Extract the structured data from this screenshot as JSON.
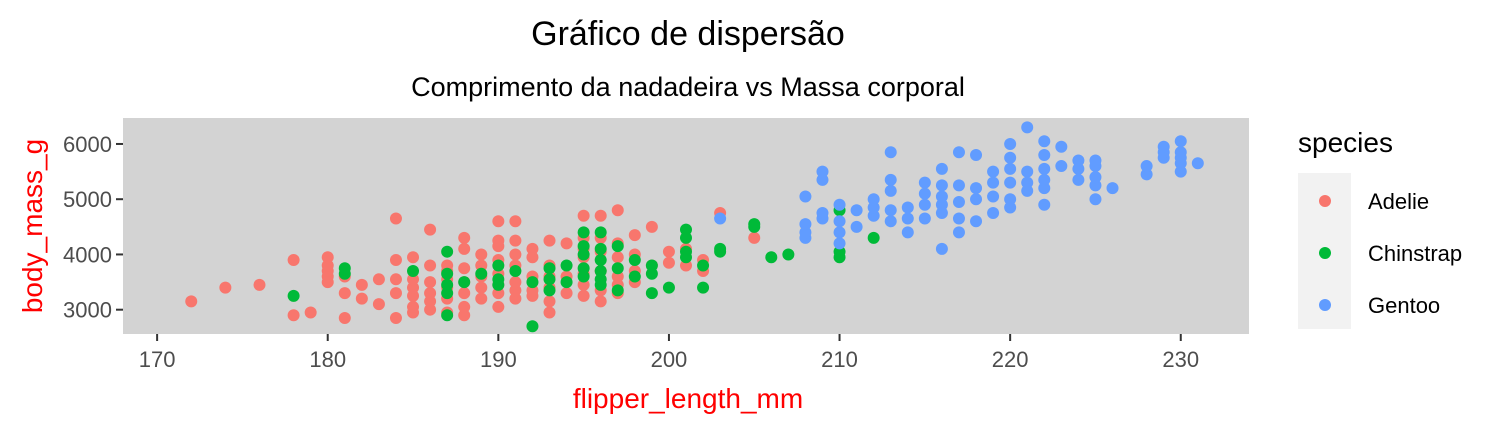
{
  "chart_data": {
    "type": "scatter",
    "title": "Gráfico de dispersão",
    "subtitle": "Comprimento da nadadeira vs Massa corporal",
    "xlabel": "flipper_length_mm",
    "ylabel": "body_mass_g",
    "xlim": [
      168,
      234
    ],
    "ylim": [
      2560,
      6470
    ],
    "xticks": [
      170,
      180,
      190,
      200,
      210,
      220,
      230
    ],
    "yticks": [
      3000,
      4000,
      5000,
      6000
    ],
    "grid": false,
    "panel_background": "#d3d3d3",
    "axis_title_color": "#ff0000",
    "legend": {
      "title": "species",
      "position": "right"
    },
    "series": [
      {
        "name": "Adelie",
        "color": "#f8766d",
        "points": [
          [
            172,
            3150
          ],
          [
            174,
            3400
          ],
          [
            176,
            3450
          ],
          [
            178,
            2900
          ],
          [
            178,
            3900
          ],
          [
            179,
            2950
          ],
          [
            180,
            3500
          ],
          [
            180,
            3600
          ],
          [
            180,
            3700
          ],
          [
            180,
            3800
          ],
          [
            180,
            3950
          ],
          [
            181,
            2850
          ],
          [
            181,
            3300
          ],
          [
            181,
            3600
          ],
          [
            182,
            3200
          ],
          [
            182,
            3450
          ],
          [
            183,
            3100
          ],
          [
            183,
            3550
          ],
          [
            184,
            2850
          ],
          [
            184,
            3300
          ],
          [
            184,
            3550
          ],
          [
            184,
            3900
          ],
          [
            184,
            4650
          ],
          [
            185,
            2950
          ],
          [
            185,
            3050
          ],
          [
            185,
            3250
          ],
          [
            185,
            3400
          ],
          [
            185,
            3550
          ],
          [
            185,
            3950
          ],
          [
            186,
            3000
          ],
          [
            186,
            3150
          ],
          [
            186,
            3300
          ],
          [
            186,
            3500
          ],
          [
            186,
            3800
          ],
          [
            186,
            4450
          ],
          [
            187,
            2950
          ],
          [
            187,
            3200
          ],
          [
            187,
            3400
          ],
          [
            187,
            3550
          ],
          [
            187,
            3700
          ],
          [
            187,
            3800
          ],
          [
            188,
            2900
          ],
          [
            188,
            3050
          ],
          [
            188,
            3300
          ],
          [
            188,
            3500
          ],
          [
            188,
            3750
          ],
          [
            188,
            4100
          ],
          [
            188,
            4300
          ],
          [
            189,
            3200
          ],
          [
            189,
            3400
          ],
          [
            189,
            3600
          ],
          [
            189,
            3800
          ],
          [
            189,
            4000
          ],
          [
            190,
            3050
          ],
          [
            190,
            3300
          ],
          [
            190,
            3450
          ],
          [
            190,
            3650
          ],
          [
            190,
            3900
          ],
          [
            190,
            4150
          ],
          [
            190,
            4250
          ],
          [
            190,
            4600
          ],
          [
            191,
            3200
          ],
          [
            191,
            3350
          ],
          [
            191,
            3500
          ],
          [
            191,
            3800
          ],
          [
            191,
            4000
          ],
          [
            191,
            4250
          ],
          [
            191,
            4600
          ],
          [
            192,
            3250
          ],
          [
            192,
            3350
          ],
          [
            192,
            3600
          ],
          [
            192,
            3950
          ],
          [
            192,
            4100
          ],
          [
            193,
            2950
          ],
          [
            193,
            3150
          ],
          [
            193,
            3400
          ],
          [
            193,
            3600
          ],
          [
            193,
            3800
          ],
          [
            193,
            4250
          ],
          [
            194,
            3300
          ],
          [
            194,
            3600
          ],
          [
            194,
            4200
          ],
          [
            195,
            3250
          ],
          [
            195,
            3450
          ],
          [
            195,
            3650
          ],
          [
            195,
            3950
          ],
          [
            195,
            4100
          ],
          [
            195,
            4300
          ],
          [
            195,
            4700
          ],
          [
            196,
            3150
          ],
          [
            196,
            3350
          ],
          [
            196,
            3700
          ],
          [
            196,
            4050
          ],
          [
            196,
            4300
          ],
          [
            196,
            4700
          ],
          [
            197,
            3300
          ],
          [
            197,
            3450
          ],
          [
            197,
            3600
          ],
          [
            197,
            3950
          ],
          [
            197,
            4200
          ],
          [
            197,
            4800
          ],
          [
            198,
            3500
          ],
          [
            198,
            3700
          ],
          [
            198,
            4000
          ],
          [
            198,
            4350
          ],
          [
            199,
            3800
          ],
          [
            199,
            4500
          ],
          [
            200,
            3850
          ],
          [
            200,
            4050
          ],
          [
            201,
            3800
          ],
          [
            201,
            4100
          ],
          [
            202,
            3700
          ],
          [
            202,
            3900
          ],
          [
            203,
            4750
          ],
          [
            205,
            4300
          ]
        ]
      },
      {
        "name": "Chinstrap",
        "color": "#00ba38",
        "points": [
          [
            178,
            3250
          ],
          [
            181,
            3650
          ],
          [
            181,
            3750
          ],
          [
            185,
            3700
          ],
          [
            187,
            2900
          ],
          [
            187,
            3300
          ],
          [
            187,
            3450
          ],
          [
            187,
            3650
          ],
          [
            187,
            4050
          ],
          [
            188,
            3500
          ],
          [
            189,
            3650
          ],
          [
            190,
            3450
          ],
          [
            190,
            3550
          ],
          [
            190,
            3800
          ],
          [
            191,
            3700
          ],
          [
            192,
            2700
          ],
          [
            192,
            3500
          ],
          [
            193,
            3350
          ],
          [
            193,
            3550
          ],
          [
            193,
            3750
          ],
          [
            194,
            3500
          ],
          [
            194,
            3800
          ],
          [
            195,
            3600
          ],
          [
            195,
            3750
          ],
          [
            195,
            4000
          ],
          [
            195,
            4150
          ],
          [
            195,
            4400
          ],
          [
            196,
            3450
          ],
          [
            196,
            3550
          ],
          [
            196,
            3700
          ],
          [
            196,
            3900
          ],
          [
            196,
            4100
          ],
          [
            196,
            4400
          ],
          [
            197,
            3350
          ],
          [
            197,
            3750
          ],
          [
            197,
            4150
          ],
          [
            198,
            3600
          ],
          [
            198,
            3900
          ],
          [
            199,
            3300
          ],
          [
            199,
            3650
          ],
          [
            199,
            3800
          ],
          [
            200,
            3400
          ],
          [
            201,
            3950
          ],
          [
            201,
            4050
          ],
          [
            201,
            4300
          ],
          [
            201,
            4450
          ],
          [
            202,
            3400
          ],
          [
            202,
            3800
          ],
          [
            203,
            4050
          ],
          [
            203,
            4100
          ],
          [
            205,
            4500
          ],
          [
            205,
            4550
          ],
          [
            206,
            3950
          ],
          [
            207,
            4000
          ],
          [
            210,
            3950
          ],
          [
            210,
            4050
          ],
          [
            210,
            4800
          ],
          [
            212,
            4300
          ]
        ]
      },
      {
        "name": "Gentoo",
        "color": "#619cff",
        "points": [
          [
            203,
            4650
          ],
          [
            208,
            5050
          ],
          [
            208,
            4300
          ],
          [
            208,
            4400
          ],
          [
            208,
            4550
          ],
          [
            209,
            4650
          ],
          [
            209,
            4750
          ],
          [
            209,
            5350
          ],
          [
            209,
            5500
          ],
          [
            210,
            4200
          ],
          [
            210,
            4400
          ],
          [
            210,
            4600
          ],
          [
            210,
            4900
          ],
          [
            211,
            4500
          ],
          [
            211,
            4800
          ],
          [
            212,
            4700
          ],
          [
            212,
            4850
          ],
          [
            212,
            5000
          ],
          [
            213,
            4600
          ],
          [
            213,
            4800
          ],
          [
            213,
            5150
          ],
          [
            213,
            5350
          ],
          [
            213,
            5850
          ],
          [
            214,
            4400
          ],
          [
            214,
            4650
          ],
          [
            214,
            4850
          ],
          [
            215,
            4650
          ],
          [
            215,
            4900
          ],
          [
            215,
            5100
          ],
          [
            215,
            5300
          ],
          [
            216,
            4100
          ],
          [
            216,
            4750
          ],
          [
            216,
            4900
          ],
          [
            216,
            5050
          ],
          [
            216,
            5250
          ],
          [
            216,
            5550
          ],
          [
            217,
            4400
          ],
          [
            217,
            4650
          ],
          [
            217,
            4950
          ],
          [
            217,
            5250
          ],
          [
            217,
            5850
          ],
          [
            218,
            4600
          ],
          [
            218,
            5000
          ],
          [
            218,
            5200
          ],
          [
            218,
            5800
          ],
          [
            219,
            4750
          ],
          [
            219,
            5050
          ],
          [
            219,
            5300
          ],
          [
            219,
            5500
          ],
          [
            220,
            4850
          ],
          [
            220,
            5000
          ],
          [
            220,
            5300
          ],
          [
            220,
            5550
          ],
          [
            220,
            5750
          ],
          [
            220,
            6000
          ],
          [
            221,
            5150
          ],
          [
            221,
            5300
          ],
          [
            221,
            5500
          ],
          [
            221,
            6300
          ],
          [
            222,
            4900
          ],
          [
            222,
            5200
          ],
          [
            222,
            5350
          ],
          [
            222,
            5550
          ],
          [
            222,
            5800
          ],
          [
            222,
            6050
          ],
          [
            223,
            5600
          ],
          [
            223,
            5950
          ],
          [
            224,
            5350
          ],
          [
            224,
            5550
          ],
          [
            224,
            5700
          ],
          [
            225,
            5000
          ],
          [
            225,
            5250
          ],
          [
            225,
            5400
          ],
          [
            225,
            5600
          ],
          [
            225,
            5700
          ],
          [
            226,
            5200
          ],
          [
            228,
            5450
          ],
          [
            228,
            5600
          ],
          [
            229,
            5750
          ],
          [
            229,
            5850
          ],
          [
            229,
            5950
          ],
          [
            230,
            5500
          ],
          [
            230,
            5650
          ],
          [
            230,
            5750
          ],
          [
            230,
            5850
          ],
          [
            230,
            6050
          ],
          [
            231,
            5650
          ]
        ]
      }
    ]
  }
}
